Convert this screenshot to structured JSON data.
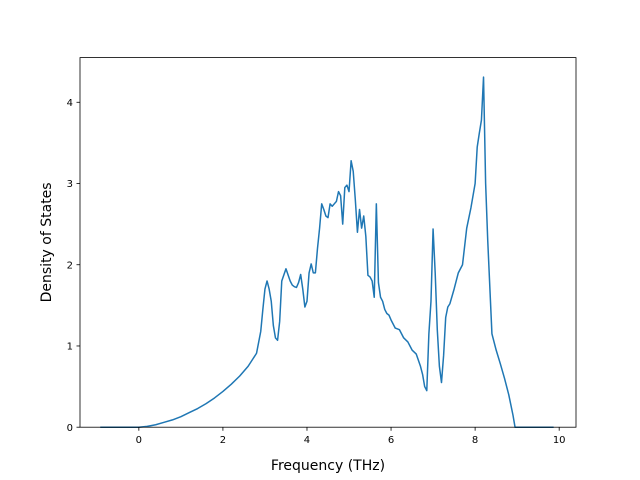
{
  "chart_data": {
    "type": "line",
    "title": "",
    "xlabel": "Frequency (THz)",
    "ylabel": "Density of States",
    "xlim": [
      -1.4,
      10.4
    ],
    "ylim": [
      0,
      4.55
    ],
    "xticks": [
      0,
      2,
      4,
      6,
      8,
      10
    ],
    "yticks": [
      0,
      1,
      2,
      3,
      4
    ],
    "grid": false,
    "legend": "none",
    "series": [
      {
        "color": "#1f77b4",
        "x": [
          -0.9,
          0.0,
          0.2,
          0.4,
          0.6,
          0.8,
          1.0,
          1.2,
          1.4,
          1.6,
          1.8,
          2.0,
          2.2,
          2.4,
          2.6,
          2.7,
          2.8,
          2.9,
          2.95,
          3.0,
          3.05,
          3.1,
          3.15,
          3.2,
          3.25,
          3.3,
          3.35,
          3.4,
          3.5,
          3.6,
          3.65,
          3.7,
          3.75,
          3.8,
          3.85,
          3.9,
          3.95,
          4.0,
          4.05,
          4.1,
          4.15,
          4.2,
          4.25,
          4.3,
          4.35,
          4.4,
          4.45,
          4.5,
          4.55,
          4.6,
          4.65,
          4.7,
          4.75,
          4.8,
          4.85,
          4.9,
          4.95,
          5.0,
          5.05,
          5.1,
          5.15,
          5.2,
          5.25,
          5.3,
          5.35,
          5.4,
          5.45,
          5.5,
          5.55,
          5.6,
          5.65,
          5.7,
          5.75,
          5.8,
          5.85,
          5.9,
          5.95,
          6.0,
          6.1,
          6.2,
          6.3,
          6.4,
          6.5,
          6.6,
          6.7,
          6.75,
          6.8,
          6.85,
          6.9,
          6.95,
          7.0,
          7.05,
          7.1,
          7.15,
          7.2,
          7.25,
          7.3,
          7.35,
          7.4,
          7.5,
          7.6,
          7.7,
          7.8,
          7.9,
          8.0,
          8.05,
          8.1,
          8.15,
          8.2,
          8.25,
          8.3,
          8.4,
          8.5,
          8.6,
          8.7,
          8.8,
          8.9,
          8.95,
          9.0,
          9.5,
          9.85
        ],
        "y": [
          0.0,
          0.0,
          0.01,
          0.03,
          0.06,
          0.09,
          0.13,
          0.18,
          0.23,
          0.29,
          0.36,
          0.44,
          0.53,
          0.63,
          0.75,
          0.83,
          0.91,
          1.18,
          1.45,
          1.7,
          1.8,
          1.7,
          1.55,
          1.25,
          1.1,
          1.07,
          1.3,
          1.8,
          1.95,
          1.8,
          1.75,
          1.73,
          1.72,
          1.78,
          1.88,
          1.7,
          1.48,
          1.55,
          1.9,
          2.01,
          1.9,
          1.9,
          2.2,
          2.45,
          2.75,
          2.68,
          2.6,
          2.58,
          2.75,
          2.72,
          2.75,
          2.78,
          2.9,
          2.85,
          2.5,
          2.95,
          2.98,
          2.9,
          3.28,
          3.15,
          2.8,
          2.4,
          2.68,
          2.45,
          2.6,
          2.35,
          1.87,
          1.85,
          1.8,
          1.6,
          2.75,
          1.78,
          1.6,
          1.55,
          1.45,
          1.4,
          1.38,
          1.32,
          1.22,
          1.2,
          1.1,
          1.05,
          0.95,
          0.9,
          0.75,
          0.65,
          0.5,
          0.45,
          1.15,
          1.55,
          2.44,
          1.9,
          1.2,
          0.75,
          0.55,
          0.88,
          1.35,
          1.48,
          1.52,
          1.7,
          1.9,
          2.0,
          2.45,
          2.7,
          3.0,
          3.45,
          3.62,
          3.78,
          4.31,
          3.0,
          2.3,
          1.15,
          0.95,
          0.78,
          0.6,
          0.4,
          0.15,
          0.0,
          0.0,
          0.0,
          0.0
        ]
      }
    ]
  }
}
